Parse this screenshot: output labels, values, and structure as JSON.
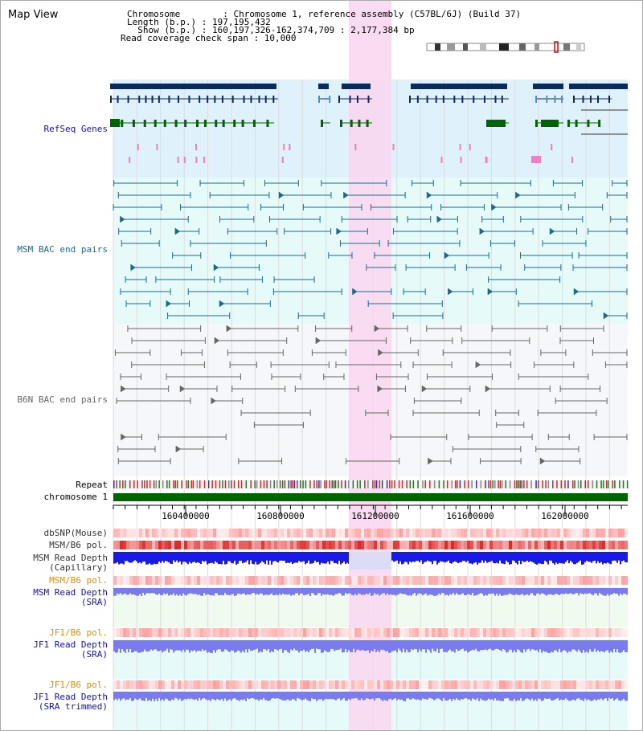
{
  "title": "Map View",
  "header": {
    "line1": "Chromosome        : Chromosome 1, reference assembly (C57BL/6J) (Build 37)",
    "line2": "Length (b.p.) : 197,195,432",
    "line3": "  Show (b.p.) : 160,197,326-162,374,709 : 2,177,384 bp",
    "line4": "Read coverage check span : 10,000"
  },
  "tracks": {
    "refseq": "RefSeq Genes",
    "msm_bac": "MSM BAC end pairs",
    "b6n_bac": "B6N BAC end pairs",
    "repeat": "Repeat",
    "chromosome": "chromosome 1",
    "dbsnp": "dbSNP(Mouse)",
    "msm_b6_pol": "MSM/B6 pol.",
    "msm_depth_cap_1": "MSM Read Depth",
    "msm_depth_cap_2": "(Capillary)",
    "msm_b6_pol_2": "MSM/B6 pol.",
    "msm_depth_sra_1": "MSM Read Depth",
    "msm_depth_sra_2": "(SRA)",
    "jf1_b6_pol": "JF1/B6 pol.",
    "jf1_depth_sra_1": "JF1 Read Depth",
    "jf1_depth_sra_2": "(SRA)",
    "jf1_b6_pol_2": "JF1/B6 pol.",
    "jf1_depth_trim_1": "JF1 Read Depth",
    "jf1_depth_trim_2": "(SRA trimmed)"
  },
  "axis": {
    "ticks": [
      "160400000",
      "160800000",
      "161200000",
      "161600000",
      "162000000"
    ]
  },
  "colors": {
    "refseq_bg": "#dff2fb",
    "msm_bg": "#e6fafa",
    "b6n_bg": "#f6f7fa",
    "highlight": "#f9d6f0",
    "navy": "#0b2a5c",
    "teal": "#1a6b8a",
    "gray": "#666666",
    "green": "#006400",
    "blue_depth": "#1a1ae6",
    "violet_depth": "#7b7bf0",
    "label_blue": "#1010c0",
    "label_orange": "#e08c00"
  }
}
